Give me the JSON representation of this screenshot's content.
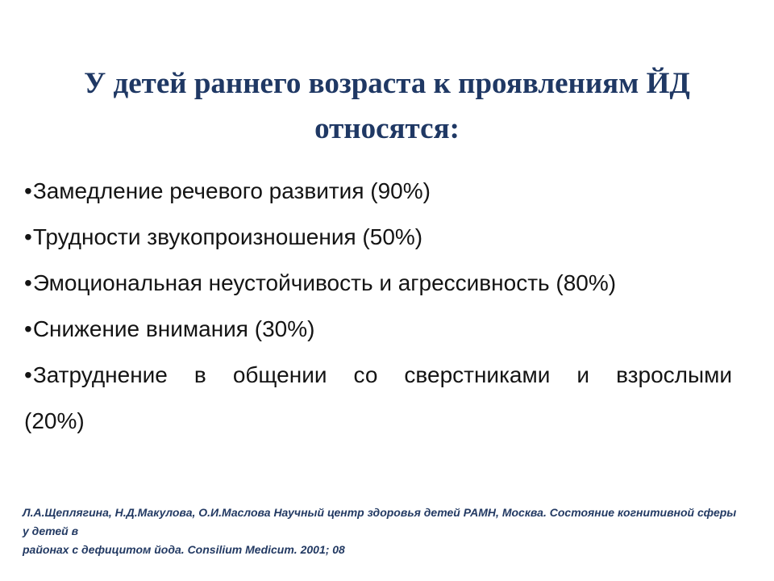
{
  "slide": {
    "background": "#ffffff",
    "title": {
      "lines": [
        "У детей раннего возраста к проявлениям ЙД",
        "относятся:"
      ],
      "color": "#1f3864"
    },
    "bullet_char": "•",
    "body_color": "#141414",
    "bullets": [
      {
        "lines": [
          "Замедление речевого развития (90%)"
        ]
      },
      {
        "lines": [
          "Трудности звукопроизношения (50%)"
        ]
      },
      {
        "lines": [
          "Эмоциональная неустойчивость и агрессивность (80%)"
        ]
      },
      {
        "lines": [
          "Снижение внимания (30%)"
        ]
      },
      {
        "lines": [
          "Затруднение в общении со сверстниками и взрослыми",
          "(20%)"
        ]
      }
    ],
    "footnote": {
      "lines": [
        "Л.А.Щеплягина, Н.Д.Макулова, О.И.Маслова Научный центр здоровья детей РАМН, Москва. Состояние когнитивной сферы у детей в",
        "районах с дефицитом йода. Consilium Medicum. 2001; 08"
      ],
      "color": "#233a63"
    }
  }
}
